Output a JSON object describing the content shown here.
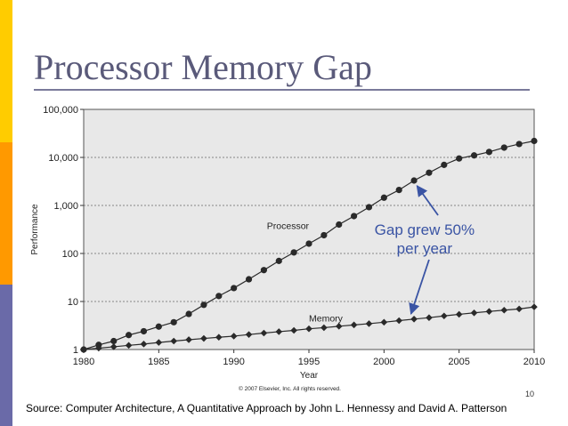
{
  "slide": {
    "title": "Processor Memory Gap",
    "page_number": "10",
    "source": "Source: Computer Architecture, A Quantitative Approach by John L. Hennessy and David A. Patterson"
  },
  "colors": {
    "title_text": "#5a5a7a",
    "annotation": "#3a54a4",
    "series": "#2a2a2a",
    "plot_background": "#e8e8e8",
    "strip_top": "#ffcc00",
    "strip_mid": "#ff9900",
    "strip_bottom": "#6a6aa8"
  },
  "chart_data": {
    "type": "line",
    "title": "",
    "xlabel": "Year",
    "ylabel": "Performance",
    "x_scale": "linear",
    "y_scale": "log",
    "xlim": [
      1980,
      2010
    ],
    "ylim": [
      1,
      100000
    ],
    "x_ticks": [
      "1980",
      "1985",
      "1990",
      "1995",
      "2000",
      "2005",
      "2010"
    ],
    "y_ticks": [
      "1",
      "10",
      "100",
      "1,000",
      "10,000",
      "100,000"
    ],
    "grid": "horizontal dotted",
    "copyright": "© 2007 Elsevier, Inc. All rights reserved.",
    "annotation": [
      "Gap grew 50%",
      "per year"
    ],
    "x": [
      1980,
      1981,
      1982,
      1983,
      1984,
      1985,
      1986,
      1987,
      1988,
      1989,
      1990,
      1991,
      1992,
      1993,
      1994,
      1995,
      1996,
      1997,
      1998,
      1999,
      2000,
      2001,
      2002,
      2003,
      2004,
      2005,
      2006,
      2007,
      2008,
      2009,
      2010
    ],
    "series": [
      {
        "name": "Processor",
        "values": [
          1,
          1.25,
          1.5,
          2,
          2.4,
          3,
          3.7,
          5.5,
          8.5,
          13,
          19,
          29,
          45,
          70,
          105,
          160,
          240,
          400,
          600,
          920,
          1450,
          2100,
          3300,
          4800,
          7000,
          9500,
          11000,
          13000,
          16000,
          19000,
          22000
        ]
      },
      {
        "name": "Memory",
        "values": [
          1,
          1.07,
          1.14,
          1.22,
          1.3,
          1.4,
          1.5,
          1.6,
          1.7,
          1.8,
          1.9,
          2.05,
          2.2,
          2.35,
          2.5,
          2.7,
          2.85,
          3.05,
          3.25,
          3.45,
          3.7,
          4,
          4.3,
          4.6,
          5,
          5.4,
          5.8,
          6.2,
          6.6,
          7,
          7.7
        ]
      }
    ]
  }
}
